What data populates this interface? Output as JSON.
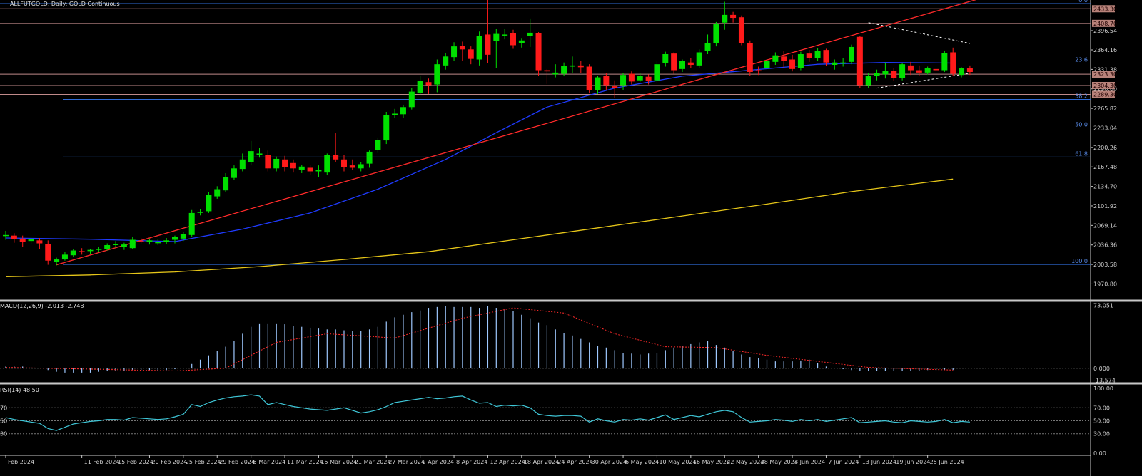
{
  "header": {
    "symbol_line": "ALLFUTGOLD, Daily:  GOLD Continuous"
  },
  "colors": {
    "bull": "#00e000",
    "bear": "#ff1a1a",
    "sma_fast": "#1f3bff",
    "sma_slow": "#e6c619",
    "trend": "#ff2a2a",
    "fib": "#2f6bd6",
    "sr": "#c08a8a",
    "macd_hist": "#9fc9ff",
    "macd_signal": "#ff2a2a",
    "rsi": "#3fc7d8"
  },
  "chart_data": {
    "type": "candlestick",
    "price_axis": {
      "ylim": [
        1945,
        2448
      ],
      "ticks": [
        "2396.54",
        "2364.16",
        "2331.38",
        "2298.60",
        "2265.82",
        "2233.04",
        "2200.26",
        "2167.48",
        "2134.70",
        "2101.92",
        "2069.14",
        "2036.36",
        "2003.58",
        "1970.80"
      ],
      "price_tags": [
        "2433.30",
        "2408.70",
        "2323.30",
        "2304.30",
        "2289.30"
      ]
    },
    "candles": [
      {
        "o": 2052,
        "h": 2060,
        "c": 2053,
        "l": 2045
      },
      {
        "o": 2052,
        "h": 2056,
        "c": 2046,
        "l": 2040
      },
      {
        "o": 2047,
        "h": 2052,
        "c": 2042,
        "l": 2033
      },
      {
        "o": 2043,
        "h": 2047,
        "c": 2046,
        "l": 2038
      },
      {
        "o": 2044,
        "h": 2048,
        "c": 2039,
        "l": 2030
      },
      {
        "o": 2038,
        "h": 2044,
        "c": 2010,
        "l": 2003
      },
      {
        "o": 2008,
        "h": 2015,
        "c": 2012,
        "l": 2002
      },
      {
        "o": 2012,
        "h": 2024,
        "c": 2020,
        "l": 2010
      },
      {
        "o": 2019,
        "h": 2030,
        "c": 2027,
        "l": 2016
      },
      {
        "o": 2026,
        "h": 2031,
        "c": 2025,
        "l": 2020
      },
      {
        "o": 2026,
        "h": 2030,
        "c": 2028,
        "l": 2021
      },
      {
        "o": 2028,
        "h": 2033,
        "c": 2030,
        "l": 2024
      },
      {
        "o": 2029,
        "h": 2039,
        "c": 2036,
        "l": 2027
      },
      {
        "o": 2036,
        "h": 2043,
        "c": 2038,
        "l": 2032
      },
      {
        "o": 2033,
        "h": 2040,
        "c": 2037,
        "l": 2028
      },
      {
        "o": 2031,
        "h": 2050,
        "c": 2045,
        "l": 2029
      },
      {
        "o": 2043,
        "h": 2048,
        "c": 2041,
        "l": 2039
      },
      {
        "o": 2041,
        "h": 2047,
        "c": 2044,
        "l": 2037
      },
      {
        "o": 2040,
        "h": 2046,
        "c": 2041,
        "l": 2036
      },
      {
        "o": 2041,
        "h": 2048,
        "c": 2044,
        "l": 2038
      },
      {
        "o": 2045,
        "h": 2052,
        "c": 2050,
        "l": 2039
      },
      {
        "o": 2047,
        "h": 2058,
        "c": 2055,
        "l": 2043
      },
      {
        "o": 2053,
        "h": 2095,
        "c": 2090,
        "l": 2050
      },
      {
        "o": 2091,
        "h": 2096,
        "c": 2092,
        "l": 2086
      },
      {
        "o": 2093,
        "h": 2125,
        "c": 2120,
        "l": 2090
      },
      {
        "o": 2118,
        "h": 2135,
        "c": 2130,
        "l": 2114
      },
      {
        "o": 2128,
        "h": 2157,
        "c": 2150,
        "l": 2125
      },
      {
        "o": 2149,
        "h": 2170,
        "c": 2165,
        "l": 2145
      },
      {
        "o": 2164,
        "h": 2190,
        "c": 2180,
        "l": 2160
      },
      {
        "o": 2176,
        "h": 2211,
        "c": 2194,
        "l": 2170
      },
      {
        "o": 2188,
        "h": 2199,
        "c": 2190,
        "l": 2183
      },
      {
        "o": 2187,
        "h": 2195,
        "c": 2165,
        "l": 2160
      },
      {
        "o": 2165,
        "h": 2185,
        "c": 2181,
        "l": 2160
      },
      {
        "o": 2180,
        "h": 2186,
        "c": 2167,
        "l": 2160
      },
      {
        "o": 2174,
        "h": 2180,
        "c": 2165,
        "l": 2158
      },
      {
        "o": 2163,
        "h": 2171,
        "c": 2168,
        "l": 2157
      },
      {
        "o": 2166,
        "h": 2170,
        "c": 2160,
        "l": 2154
      },
      {
        "o": 2160,
        "h": 2170,
        "c": 2162,
        "l": 2150
      },
      {
        "o": 2158,
        "h": 2190,
        "c": 2187,
        "l": 2154
      },
      {
        "o": 2187,
        "h": 2224,
        "c": 2180,
        "l": 2176
      },
      {
        "o": 2180,
        "h": 2187,
        "c": 2167,
        "l": 2160
      },
      {
        "o": 2170,
        "h": 2180,
        "c": 2166,
        "l": 2162
      },
      {
        "o": 2165,
        "h": 2175,
        "c": 2172,
        "l": 2160
      },
      {
        "o": 2173,
        "h": 2195,
        "c": 2193,
        "l": 2166
      },
      {
        "o": 2196,
        "h": 2217,
        "c": 2213,
        "l": 2191
      },
      {
        "o": 2212,
        "h": 2260,
        "c": 2254,
        "l": 2206
      },
      {
        "o": 2254,
        "h": 2265,
        "c": 2257,
        "l": 2250
      },
      {
        "o": 2256,
        "h": 2272,
        "c": 2268,
        "l": 2250
      },
      {
        "o": 2268,
        "h": 2300,
        "c": 2294,
        "l": 2264
      },
      {
        "o": 2292,
        "h": 2320,
        "c": 2312,
        "l": 2288
      },
      {
        "o": 2310,
        "h": 2316,
        "c": 2305,
        "l": 2290
      },
      {
        "o": 2306,
        "h": 2348,
        "c": 2340,
        "l": 2293
      },
      {
        "o": 2338,
        "h": 2359,
        "c": 2353,
        "l": 2331
      },
      {
        "o": 2352,
        "h": 2377,
        "c": 2370,
        "l": 2345
      },
      {
        "o": 2371,
        "h": 2378,
        "c": 2365,
        "l": 2346
      },
      {
        "o": 2365,
        "h": 2370,
        "c": 2349,
        "l": 2340
      },
      {
        "o": 2348,
        "h": 2395,
        "c": 2388,
        "l": 2338
      },
      {
        "o": 2390,
        "h": 2448,
        "c": 2356,
        "l": 2342
      },
      {
        "o": 2379,
        "h": 2400,
        "c": 2391,
        "l": 2334
      },
      {
        "o": 2390,
        "h": 2400,
        "c": 2390,
        "l": 2382
      },
      {
        "o": 2392,
        "h": 2398,
        "c": 2372,
        "l": 2366
      },
      {
        "o": 2376,
        "h": 2383,
        "c": 2380,
        "l": 2368
      },
      {
        "o": 2388,
        "h": 2417,
        "c": 2393,
        "l": 2369
      },
      {
        "o": 2392,
        "h": 2394,
        "c": 2330,
        "l": 2320
      },
      {
        "o": 2330,
        "h": 2332,
        "c": 2328,
        "l": 2307
      },
      {
        "o": 2323,
        "h": 2340,
        "c": 2326,
        "l": 2318
      },
      {
        "o": 2324,
        "h": 2343,
        "c": 2337,
        "l": 2320
      },
      {
        "o": 2336,
        "h": 2353,
        "c": 2338,
        "l": 2325
      },
      {
        "o": 2338,
        "h": 2345,
        "c": 2335,
        "l": 2325
      },
      {
        "o": 2336,
        "h": 2340,
        "c": 2296,
        "l": 2291
      },
      {
        "o": 2297,
        "h": 2320,
        "c": 2318,
        "l": 2290
      },
      {
        "o": 2320,
        "h": 2325,
        "c": 2305,
        "l": 2296
      },
      {
        "o": 2303,
        "h": 2313,
        "c": 2300,
        "l": 2283
      },
      {
        "o": 2305,
        "h": 2325,
        "c": 2322,
        "l": 2296
      },
      {
        "o": 2324,
        "h": 2328,
        "c": 2311,
        "l": 2306
      },
      {
        "o": 2313,
        "h": 2325,
        "c": 2321,
        "l": 2310
      },
      {
        "o": 2319,
        "h": 2323,
        "c": 2312,
        "l": 2306
      },
      {
        "o": 2313,
        "h": 2345,
        "c": 2340,
        "l": 2309
      },
      {
        "o": 2342,
        "h": 2361,
        "c": 2357,
        "l": 2336
      },
      {
        "o": 2358,
        "h": 2360,
        "c": 2330,
        "l": 2324
      },
      {
        "o": 2332,
        "h": 2348,
        "c": 2345,
        "l": 2327
      },
      {
        "o": 2343,
        "h": 2350,
        "c": 2339,
        "l": 2333
      },
      {
        "o": 2338,
        "h": 2365,
        "c": 2360,
        "l": 2334
      },
      {
        "o": 2362,
        "h": 2390,
        "c": 2375,
        "l": 2357
      },
      {
        "o": 2376,
        "h": 2411,
        "c": 2408,
        "l": 2370
      },
      {
        "o": 2410,
        "h": 2445,
        "c": 2423,
        "l": 2398
      },
      {
        "o": 2423,
        "h": 2428,
        "c": 2418,
        "l": 2410
      },
      {
        "o": 2419,
        "h": 2422,
        "c": 2375,
        "l": 2372
      },
      {
        "o": 2375,
        "h": 2380,
        "c": 2327,
        "l": 2320
      },
      {
        "o": 2330,
        "h": 2336,
        "c": 2329,
        "l": 2322
      },
      {
        "o": 2333,
        "h": 2347,
        "c": 2345,
        "l": 2328
      },
      {
        "o": 2344,
        "h": 2360,
        "c": 2355,
        "l": 2339
      },
      {
        "o": 2353,
        "h": 2362,
        "c": 2346,
        "l": 2334
      },
      {
        "o": 2348,
        "h": 2356,
        "c": 2332,
        "l": 2328
      },
      {
        "o": 2334,
        "h": 2361,
        "c": 2357,
        "l": 2330
      },
      {
        "o": 2358,
        "h": 2364,
        "c": 2350,
        "l": 2344
      },
      {
        "o": 2350,
        "h": 2367,
        "c": 2362,
        "l": 2345
      },
      {
        "o": 2364,
        "h": 2366,
        "c": 2343,
        "l": 2337
      },
      {
        "o": 2339,
        "h": 2348,
        "c": 2343,
        "l": 2331
      },
      {
        "o": 2343,
        "h": 2350,
        "c": 2343,
        "l": 2336
      },
      {
        "o": 2344,
        "h": 2373,
        "c": 2369,
        "l": 2340
      },
      {
        "o": 2386,
        "h": 2387,
        "c": 2305,
        "l": 2300
      },
      {
        "o": 2305,
        "h": 2325,
        "c": 2320,
        "l": 2300
      },
      {
        "o": 2320,
        "h": 2331,
        "c": 2325,
        "l": 2313
      },
      {
        "o": 2323,
        "h": 2343,
        "c": 2329,
        "l": 2316
      },
      {
        "o": 2329,
        "h": 2334,
        "c": 2317,
        "l": 2312
      },
      {
        "o": 2317,
        "h": 2342,
        "c": 2340,
        "l": 2313
      },
      {
        "o": 2338,
        "h": 2344,
        "c": 2330,
        "l": 2322
      },
      {
        "o": 2330,
        "h": 2338,
        "c": 2326,
        "l": 2320
      },
      {
        "o": 2326,
        "h": 2336,
        "c": 2333,
        "l": 2323
      },
      {
        "o": 2332,
        "h": 2336,
        "c": 2330,
        "l": 2325
      },
      {
        "o": 2330,
        "h": 2363,
        "c": 2359,
        "l": 2327
      },
      {
        "o": 2360,
        "h": 2368,
        "c": 2324,
        "l": 2320
      },
      {
        "o": 2322,
        "h": 2335,
        "c": 2333,
        "l": 2318
      },
      {
        "o": 2333,
        "h": 2338,
        "c": 2327,
        "l": 2322
      }
    ],
    "date_labels": [
      {
        "i": 0,
        "t": "Feb 2024"
      },
      {
        "i": 9,
        "t": "11 Feb 2024"
      },
      {
        "i": 13,
        "t": "15 Feb 2024"
      },
      {
        "i": 17,
        "t": "20 Feb 2024"
      },
      {
        "i": 21,
        "t": "25 Feb 2024"
      },
      {
        "i": 25,
        "t": "29 Feb 2024"
      },
      {
        "i": 29,
        "t": "5 Mar 2024"
      },
      {
        "i": 33,
        "t": "11 Mar 2024"
      },
      {
        "i": 37,
        "t": "15 Mar 2024"
      },
      {
        "i": 41,
        "t": "21 Mar 2024"
      },
      {
        "i": 45,
        "t": "27 Mar 2024"
      },
      {
        "i": 49,
        "t": "2 Apr 2024"
      },
      {
        "i": 53,
        "t": "8 Apr 2024"
      },
      {
        "i": 57,
        "t": "12 Apr 2024"
      },
      {
        "i": 61,
        "t": "18 Apr 2024"
      },
      {
        "i": 65,
        "t": "24 Apr 2024"
      },
      {
        "i": 69,
        "t": "30 Apr 2024"
      },
      {
        "i": 73,
        "t": "6 May 2024"
      },
      {
        "i": 77,
        "t": "10 May 2024"
      },
      {
        "i": 81,
        "t": "16 May 2024"
      },
      {
        "i": 85,
        "t": "22 May 2024"
      },
      {
        "i": 89,
        "t": "28 May 2024"
      },
      {
        "i": 93,
        "t": "3 Jun 2024"
      },
      {
        "i": 97,
        "t": "7 Jun 2024"
      },
      {
        "i": 101,
        "t": "13 Jun 2024"
      },
      {
        "i": 105,
        "t": "19 Jun 2024"
      },
      {
        "i": 109,
        "t": "25 Jun 2024"
      }
    ],
    "fibonacci": [
      {
        "level": "0.0",
        "price": 2442
      },
      {
        "level": "23.6",
        "price": 2342
      },
      {
        "level": "38.2",
        "price": 2281
      },
      {
        "level": "50.0",
        "price": 2233
      },
      {
        "level": "61.8",
        "price": 2184
      },
      {
        "level": "100.0",
        "price": 2003.58
      }
    ],
    "support_resistance": [
      2433.3,
      2408.7,
      2323.3,
      2304.3,
      2289.3
    ],
    "sma_fast": [
      [
        0,
        2048
      ],
      [
        10,
        2046
      ],
      [
        20,
        2042
      ],
      [
        28,
        2063
      ],
      [
        36,
        2090
      ],
      [
        44,
        2130
      ],
      [
        52,
        2180
      ],
      [
        58,
        2225
      ],
      [
        64,
        2268
      ],
      [
        72,
        2300
      ],
      [
        80,
        2320
      ],
      [
        88,
        2330
      ],
      [
        96,
        2340
      ],
      [
        104,
        2343
      ],
      [
        112,
        2342
      ]
    ],
    "sma_slow": [
      [
        0,
        1983
      ],
      [
        10,
        1986
      ],
      [
        20,
        1991
      ],
      [
        30,
        2000
      ],
      [
        40,
        2012
      ],
      [
        50,
        2025
      ],
      [
        60,
        2045
      ],
      [
        70,
        2065
      ],
      [
        80,
        2085
      ],
      [
        90,
        2105
      ],
      [
        100,
        2126
      ],
      [
        112,
        2147
      ]
    ],
    "trendline": [
      [
        6,
        2003
      ],
      [
        118,
        2462
      ]
    ],
    "wedge_upper": [
      [
        102,
        2410
      ],
      [
        114,
        2375
      ]
    ],
    "wedge_lower": [
      [
        103,
        2300
      ],
      [
        114,
        2325
      ]
    ],
    "macd": {
      "label": "MACD(12,26,9) -2.013 -2.748",
      "ticks": [
        "73.051",
        "0.000",
        "-13.574"
      ],
      "ylim": [
        -15,
        75
      ],
      "hist": [
        2,
        2,
        2,
        1,
        0,
        -2,
        -4,
        -5,
        -5,
        -5,
        -5,
        -4,
        -3,
        -3,
        -3,
        -2,
        -2,
        -2,
        -3,
        -2,
        -1,
        0,
        5,
        10,
        15,
        20,
        25,
        32,
        40,
        48,
        52,
        52,
        52,
        51,
        49,
        48,
        47,
        46,
        45,
        45,
        44,
        43,
        43,
        45,
        48,
        54,
        59,
        62,
        65,
        67,
        70,
        71,
        72,
        71,
        71,
        71,
        70,
        72,
        70,
        68,
        66,
        62,
        58,
        53,
        50,
        45,
        41,
        38,
        34,
        30,
        26,
        24,
        21,
        18,
        17,
        16,
        17,
        18,
        21,
        24,
        26,
        28,
        30,
        32,
        27,
        24,
        20,
        16,
        13,
        12,
        10,
        8,
        8,
        8,
        9,
        10,
        6,
        2,
        0,
        -1,
        -2,
        -3,
        -3,
        -3,
        -3,
        -3,
        -3,
        -3,
        -3,
        -2,
        -2,
        -2,
        -2
      ],
      "signal": [
        [
          0,
          1
        ],
        [
          10,
          -1
        ],
        [
          20,
          -3
        ],
        [
          26,
          0
        ],
        [
          32,
          30
        ],
        [
          38,
          40
        ],
        [
          46,
          35
        ],
        [
          54,
          58
        ],
        [
          60,
          70
        ],
        [
          66,
          64
        ],
        [
          72,
          40
        ],
        [
          78,
          25
        ],
        [
          84,
          24
        ],
        [
          90,
          15
        ],
        [
          96,
          8
        ],
        [
          102,
          1
        ],
        [
          112,
          -2
        ]
      ]
    },
    "rsi": {
      "label": "RSI(14) 48.50",
      "ticks": [
        "100.00",
        "70.00",
        "50.00",
        "30.00",
        "0.00"
      ],
      "left_ticks": [
        "70",
        "50",
        "30"
      ],
      "ylim": [
        0,
        100
      ],
      "values": [
        55,
        52,
        50,
        48,
        46,
        38,
        35,
        40,
        45,
        47,
        49,
        50,
        52,
        52,
        51,
        55,
        54,
        53,
        52,
        53,
        56,
        60,
        75,
        72,
        78,
        82,
        85,
        87,
        88,
        90,
        88,
        75,
        78,
        75,
        72,
        70,
        68,
        67,
        66,
        68,
        70,
        66,
        62,
        64,
        67,
        72,
        78,
        80,
        82,
        84,
        86,
        84,
        85,
        87,
        88,
        82,
        77,
        78,
        72,
        74,
        73,
        74,
        70,
        60,
        58,
        57,
        58,
        58,
        57,
        48,
        53,
        50,
        48,
        52,
        51,
        53,
        51,
        55,
        59,
        52,
        55,
        58,
        56,
        60,
        64,
        66,
        64,
        55,
        48,
        49,
        50,
        52,
        51,
        49,
        52,
        50,
        52,
        49,
        51,
        53,
        55,
        47,
        48,
        49,
        50,
        48,
        47,
        50,
        49,
        48,
        49,
        52,
        47,
        49,
        48
      ]
    }
  }
}
